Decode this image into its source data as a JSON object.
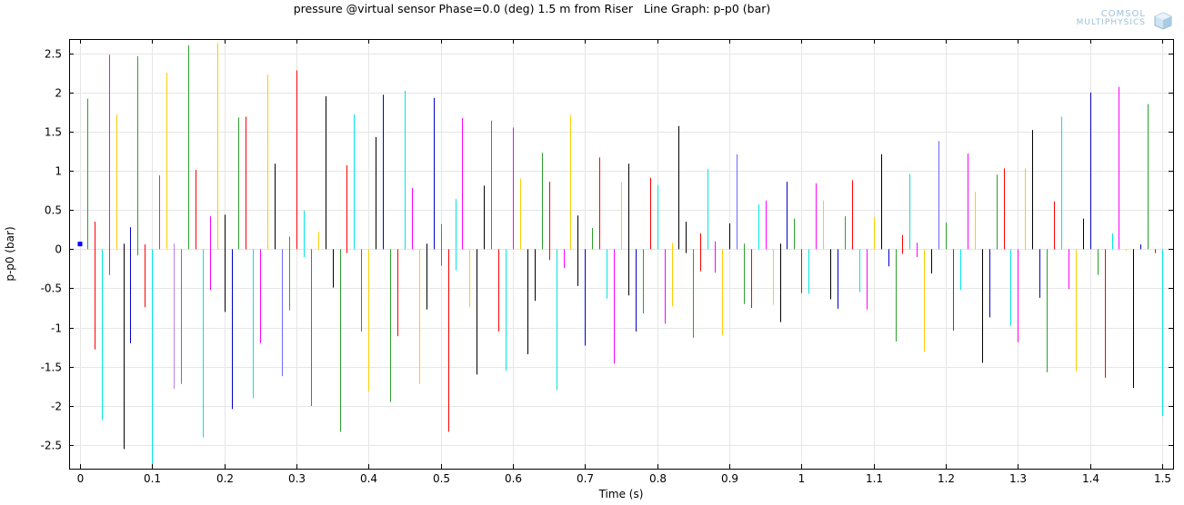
{
  "chart_data": {
    "type": "line",
    "title": "pressure @virtual sensor Phase=0.0 (deg) 1.5 m from Riser   Line Graph: p-p0 (bar)",
    "xlabel": "Time (s)",
    "ylabel": "p-p0 (bar)",
    "xlim": [
      -0.015,
      1.515
    ],
    "ylim": [
      -2.8,
      2.68
    ],
    "xticks": [
      0,
      0.1,
      0.2,
      0.3,
      0.4,
      0.5,
      0.6,
      0.7,
      0.8,
      0.9,
      1,
      1.1,
      1.2,
      1.3,
      1.4,
      1.5
    ],
    "yticks": [
      -2.5,
      -2,
      -1.5,
      -1,
      -0.5,
      0,
      0.5,
      1,
      1.5,
      2,
      2.5
    ],
    "grid": true,
    "legend": "none",
    "segments": [
      {
        "x": 0.0,
        "ylo": 0.06,
        "yhi": 0.06,
        "color": "#0000ff"
      },
      {
        "x": 0.01,
        "ylo": 0.0,
        "yhi": 1.92,
        "color": "#2ca02c"
      },
      {
        "x": 0.02,
        "ylo": -1.28,
        "yhi": 0.35,
        "color": "#ff0000"
      },
      {
        "x": 0.03,
        "ylo": -2.18,
        "yhi": 0.0,
        "color": "#00e5e5"
      },
      {
        "x": 0.04,
        "ylo": -0.33,
        "yhi": 2.48,
        "color": "#ff00ff"
      },
      {
        "x": 0.05,
        "ylo": 0.0,
        "yhi": 1.72,
        "color": "#ffcc00"
      },
      {
        "x": 0.06,
        "ylo": -2.55,
        "yhi": 0.07,
        "color": "#000000"
      },
      {
        "x": 0.07,
        "ylo": -1.2,
        "yhi": 0.28,
        "color": "#0000cc"
      },
      {
        "x": 0.08,
        "ylo": -0.08,
        "yhi": 2.46,
        "color": "#2ca02c"
      },
      {
        "x": 0.09,
        "ylo": -0.74,
        "yhi": 0.06,
        "color": "#ff0000"
      },
      {
        "x": 0.1,
        "ylo": -2.75,
        "yhi": 0.0,
        "color": "#00e5e5"
      },
      {
        "x": 0.11,
        "ylo": 0.0,
        "yhi": 0.94,
        "color": "#ff00ff"
      },
      {
        "x": 0.12,
        "ylo": 0.0,
        "yhi": 2.25,
        "color": "#ffcc00"
      },
      {
        "x": 0.13,
        "ylo": -1.78,
        "yhi": 0.07,
        "color": "#c080e0"
      },
      {
        "x": 0.14,
        "ylo": -1.72,
        "yhi": 0.0,
        "color": "#6a6aff"
      },
      {
        "x": 0.15,
        "ylo": 0.0,
        "yhi": 2.6,
        "color": "#2ca02c"
      },
      {
        "x": 0.16,
        "ylo": 0.0,
        "yhi": 1.01,
        "color": "#ff0000"
      },
      {
        "x": 0.17,
        "ylo": -2.4,
        "yhi": 0.0,
        "color": "#00e5e5"
      },
      {
        "x": 0.18,
        "ylo": -0.52,
        "yhi": 0.42,
        "color": "#ff00ff"
      },
      {
        "x": 0.19,
        "ylo": 0.0,
        "yhi": 2.63,
        "color": "#ffcc00"
      },
      {
        "x": 0.2,
        "ylo": -0.8,
        "yhi": 0.44,
        "color": "#000000"
      },
      {
        "x": 0.21,
        "ylo": -2.04,
        "yhi": 0.0,
        "color": "#0000cc"
      },
      {
        "x": 0.22,
        "ylo": 0.0,
        "yhi": 1.68,
        "color": "#2ca02c"
      },
      {
        "x": 0.23,
        "ylo": 0.0,
        "yhi": 1.69,
        "color": "#ff0000"
      },
      {
        "x": 0.24,
        "ylo": -1.9,
        "yhi": 0.0,
        "color": "#00e5e5"
      },
      {
        "x": 0.25,
        "ylo": -1.2,
        "yhi": 0.0,
        "color": "#ff00ff"
      },
      {
        "x": 0.26,
        "ylo": 0.0,
        "yhi": 2.23,
        "color": "#ffcc00"
      },
      {
        "x": 0.27,
        "ylo": 0.0,
        "yhi": 1.09,
        "color": "#000000"
      },
      {
        "x": 0.28,
        "ylo": -1.62,
        "yhi": 0.0,
        "color": "#6a6aff"
      },
      {
        "x": 0.29,
        "ylo": -0.78,
        "yhi": 0.16,
        "color": "#2ca02c"
      },
      {
        "x": 0.3,
        "ylo": 0.0,
        "yhi": 2.28,
        "color": "#ff0000"
      },
      {
        "x": 0.31,
        "ylo": -0.1,
        "yhi": 0.49,
        "color": "#00e5e5"
      },
      {
        "x": 0.32,
        "ylo": -2.0,
        "yhi": 0.0,
        "color": "#ff00ff"
      },
      {
        "x": 0.33,
        "ylo": 0.0,
        "yhi": 0.22,
        "color": "#ffcc00"
      },
      {
        "x": 0.34,
        "ylo": 0.0,
        "yhi": 1.95,
        "color": "#000000"
      },
      {
        "x": 0.35,
        "ylo": -0.49,
        "yhi": 0.0,
        "color": "#000000"
      },
      {
        "x": 0.36,
        "ylo": -2.33,
        "yhi": 0.0,
        "color": "#2ca02c"
      },
      {
        "x": 0.37,
        "ylo": -0.05,
        "yhi": 1.07,
        "color": "#ff0000"
      },
      {
        "x": 0.38,
        "ylo": 0.0,
        "yhi": 1.72,
        "color": "#00e5e5"
      },
      {
        "x": 0.39,
        "ylo": -1.05,
        "yhi": 0.0,
        "color": "#ff00ff"
      },
      {
        "x": 0.4,
        "ylo": -1.82,
        "yhi": 0.0,
        "color": "#ffcc00"
      },
      {
        "x": 0.41,
        "ylo": 0.0,
        "yhi": 1.43,
        "color": "#000000"
      },
      {
        "x": 0.42,
        "ylo": 0.0,
        "yhi": 1.97,
        "color": "#0000cc"
      },
      {
        "x": 0.43,
        "ylo": -1.95,
        "yhi": 0.0,
        "color": "#2ca02c"
      },
      {
        "x": 0.44,
        "ylo": -1.11,
        "yhi": 0.0,
        "color": "#ff0000"
      },
      {
        "x": 0.45,
        "ylo": 0.0,
        "yhi": 2.02,
        "color": "#00e5e5"
      },
      {
        "x": 0.46,
        "ylo": 0.0,
        "yhi": 0.78,
        "color": "#ff00ff"
      },
      {
        "x": 0.47,
        "ylo": -1.72,
        "yhi": 0.0,
        "color": "#ffcc00"
      },
      {
        "x": 0.48,
        "ylo": -0.77,
        "yhi": 0.07,
        "color": "#000000"
      },
      {
        "x": 0.49,
        "ylo": 0.0,
        "yhi": 1.93,
        "color": "#0000cc"
      },
      {
        "x": 0.5,
        "ylo": -0.21,
        "yhi": 0.32,
        "color": "#2ca02c"
      },
      {
        "x": 0.51,
        "ylo": -2.33,
        "yhi": 0.0,
        "color": "#ff0000"
      },
      {
        "x": 0.52,
        "ylo": -0.27,
        "yhi": 0.64,
        "color": "#00e5e5"
      },
      {
        "x": 0.53,
        "ylo": 0.0,
        "yhi": 1.67,
        "color": "#ff00ff"
      },
      {
        "x": 0.54,
        "ylo": -0.74,
        "yhi": 0.0,
        "color": "#ffcc00"
      },
      {
        "x": 0.55,
        "ylo": -1.6,
        "yhi": 0.0,
        "color": "#000000"
      },
      {
        "x": 0.56,
        "ylo": 0.0,
        "yhi": 0.81,
        "color": "#000000"
      },
      {
        "x": 0.57,
        "ylo": 0.0,
        "yhi": 1.64,
        "color": "#2ca02c"
      },
      {
        "x": 0.58,
        "ylo": -1.05,
        "yhi": 0.0,
        "color": "#ff0000"
      },
      {
        "x": 0.59,
        "ylo": -1.55,
        "yhi": 0.0,
        "color": "#00e5e5"
      },
      {
        "x": 0.6,
        "ylo": 0.0,
        "yhi": 1.55,
        "color": "#ff00ff"
      },
      {
        "x": 0.61,
        "ylo": 0.0,
        "yhi": 0.9,
        "color": "#ffcc00"
      },
      {
        "x": 0.62,
        "ylo": -1.34,
        "yhi": 0.0,
        "color": "#000000"
      },
      {
        "x": 0.63,
        "ylo": -0.66,
        "yhi": 0.0,
        "color": "#000000"
      },
      {
        "x": 0.64,
        "ylo": 0.0,
        "yhi": 1.23,
        "color": "#2ca02c"
      },
      {
        "x": 0.65,
        "ylo": -0.14,
        "yhi": 0.86,
        "color": "#ff0000"
      },
      {
        "x": 0.66,
        "ylo": -1.8,
        "yhi": 0.0,
        "color": "#00e5e5"
      },
      {
        "x": 0.67,
        "ylo": -0.24,
        "yhi": 0.0,
        "color": "#ff00ff"
      },
      {
        "x": 0.68,
        "ylo": 0.0,
        "yhi": 1.71,
        "color": "#ffcc00"
      },
      {
        "x": 0.69,
        "ylo": -0.47,
        "yhi": 0.43,
        "color": "#000000"
      },
      {
        "x": 0.7,
        "ylo": -1.23,
        "yhi": 0.0,
        "color": "#0000cc"
      },
      {
        "x": 0.71,
        "ylo": 0.0,
        "yhi": 0.27,
        "color": "#2ca02c"
      },
      {
        "x": 0.72,
        "ylo": 0.0,
        "yhi": 1.17,
        "color": "#ff0000"
      },
      {
        "x": 0.73,
        "ylo": -0.63,
        "yhi": 0.0,
        "color": "#00e5e5"
      },
      {
        "x": 0.74,
        "ylo": -1.46,
        "yhi": 0.0,
        "color": "#ff00ff"
      },
      {
        "x": 0.75,
        "ylo": 0.0,
        "yhi": 0.86,
        "color": "#ffcc00"
      },
      {
        "x": 0.76,
        "ylo": -0.59,
        "yhi": 1.09,
        "color": "#000000"
      },
      {
        "x": 0.77,
        "ylo": -1.05,
        "yhi": 0.0,
        "color": "#0000cc"
      },
      {
        "x": 0.78,
        "ylo": -0.82,
        "yhi": 0.0,
        "color": "#2ca02c"
      },
      {
        "x": 0.79,
        "ylo": 0.0,
        "yhi": 0.91,
        "color": "#ff0000"
      },
      {
        "x": 0.8,
        "ylo": 0.0,
        "yhi": 0.82,
        "color": "#00e5e5"
      },
      {
        "x": 0.81,
        "ylo": -0.95,
        "yhi": 0.0,
        "color": "#ff00ff"
      },
      {
        "x": 0.82,
        "ylo": -0.73,
        "yhi": 0.08,
        "color": "#ffcc00"
      },
      {
        "x": 0.83,
        "ylo": 0.0,
        "yhi": 1.57,
        "color": "#000000"
      },
      {
        "x": 0.84,
        "ylo": -0.05,
        "yhi": 0.35,
        "color": "#000000"
      },
      {
        "x": 0.85,
        "ylo": -1.13,
        "yhi": 0.0,
        "color": "#2ca02c"
      },
      {
        "x": 0.86,
        "ylo": -0.28,
        "yhi": 0.2,
        "color": "#ff0000"
      },
      {
        "x": 0.87,
        "ylo": 0.0,
        "yhi": 1.02,
        "color": "#00e5e5"
      },
      {
        "x": 0.88,
        "ylo": -0.3,
        "yhi": 0.1,
        "color": "#ff00ff"
      },
      {
        "x": 0.89,
        "ylo": -1.1,
        "yhi": 0.0,
        "color": "#ffcc00"
      },
      {
        "x": 0.9,
        "ylo": 0.0,
        "yhi": 0.33,
        "color": "#000000"
      },
      {
        "x": 0.91,
        "ylo": 0.0,
        "yhi": 1.21,
        "color": "#6a6aff"
      },
      {
        "x": 0.92,
        "ylo": -0.7,
        "yhi": 0.07,
        "color": "#2ca02c"
      },
      {
        "x": 0.93,
        "ylo": -0.75,
        "yhi": 0.0,
        "color": "#ff0000"
      },
      {
        "x": 0.94,
        "ylo": 0.0,
        "yhi": 0.57,
        "color": "#00e5e5"
      },
      {
        "x": 0.95,
        "ylo": 0.0,
        "yhi": 0.62,
        "color": "#ff00ff"
      },
      {
        "x": 0.96,
        "ylo": -0.71,
        "yhi": 0.0,
        "color": "#ffcc00"
      },
      {
        "x": 0.97,
        "ylo": -0.93,
        "yhi": 0.07,
        "color": "#000000"
      },
      {
        "x": 0.98,
        "ylo": 0.0,
        "yhi": 0.86,
        "color": "#0000cc"
      },
      {
        "x": 0.99,
        "ylo": 0.0,
        "yhi": 0.39,
        "color": "#2ca02c"
      },
      {
        "x": 1.0,
        "ylo": -0.56,
        "yhi": 0.0,
        "color": "#ff0000"
      },
      {
        "x": 1.01,
        "ylo": -0.57,
        "yhi": 0.0,
        "color": "#00e5e5"
      },
      {
        "x": 1.02,
        "ylo": 0.0,
        "yhi": 0.84,
        "color": "#ff00ff"
      },
      {
        "x": 1.03,
        "ylo": 0.0,
        "yhi": 0.62,
        "color": "#ffcc00"
      },
      {
        "x": 1.04,
        "ylo": -0.64,
        "yhi": 0.0,
        "color": "#000000"
      },
      {
        "x": 1.05,
        "ylo": -0.76,
        "yhi": 0.0,
        "color": "#0000cc"
      },
      {
        "x": 1.06,
        "ylo": 0.0,
        "yhi": 0.42,
        "color": "#2ca02c"
      },
      {
        "x": 1.07,
        "ylo": 0.0,
        "yhi": 0.88,
        "color": "#ff0000"
      },
      {
        "x": 1.08,
        "ylo": -0.55,
        "yhi": 0.0,
        "color": "#00e5e5"
      },
      {
        "x": 1.09,
        "ylo": -0.77,
        "yhi": 0.0,
        "color": "#ff00ff"
      },
      {
        "x": 1.1,
        "ylo": 0.0,
        "yhi": 0.41,
        "color": "#ffcc00"
      },
      {
        "x": 1.11,
        "ylo": 0.0,
        "yhi": 1.21,
        "color": "#000000"
      },
      {
        "x": 1.12,
        "ylo": -0.22,
        "yhi": 0.0,
        "color": "#0000cc"
      },
      {
        "x": 1.13,
        "ylo": -1.18,
        "yhi": 0.0,
        "color": "#2ca02c"
      },
      {
        "x": 1.14,
        "ylo": -0.06,
        "yhi": 0.18,
        "color": "#ff0000"
      },
      {
        "x": 1.15,
        "ylo": 0.0,
        "yhi": 0.96,
        "color": "#00e5e5"
      },
      {
        "x": 1.16,
        "ylo": -0.1,
        "yhi": 0.08,
        "color": "#ff00ff"
      },
      {
        "x": 1.17,
        "ylo": -1.31,
        "yhi": 0.0,
        "color": "#ffcc00"
      },
      {
        "x": 1.18,
        "ylo": -0.31,
        "yhi": 0.0,
        "color": "#000000"
      },
      {
        "x": 1.19,
        "ylo": 0.0,
        "yhi": 1.38,
        "color": "#6a6aff"
      },
      {
        "x": 1.2,
        "ylo": 0.0,
        "yhi": 0.34,
        "color": "#2ca02c"
      },
      {
        "x": 1.21,
        "ylo": -1.04,
        "yhi": 0.0,
        "color": "#ff0000"
      },
      {
        "x": 1.22,
        "ylo": -0.52,
        "yhi": 0.0,
        "color": "#00e5e5"
      },
      {
        "x": 1.23,
        "ylo": 0.0,
        "yhi": 1.22,
        "color": "#ff00ff"
      },
      {
        "x": 1.24,
        "ylo": 0.0,
        "yhi": 0.73,
        "color": "#ffcc00"
      },
      {
        "x": 1.25,
        "ylo": -1.45,
        "yhi": 0.0,
        "color": "#000000"
      },
      {
        "x": 1.26,
        "ylo": -0.87,
        "yhi": 0.0,
        "color": "#0000cc"
      },
      {
        "x": 1.27,
        "ylo": 0.0,
        "yhi": 0.95,
        "color": "#2ca02c"
      },
      {
        "x": 1.28,
        "ylo": 0.0,
        "yhi": 1.03,
        "color": "#ff0000"
      },
      {
        "x": 1.29,
        "ylo": -0.98,
        "yhi": 0.0,
        "color": "#00e5e5"
      },
      {
        "x": 1.3,
        "ylo": -1.19,
        "yhi": 0.0,
        "color": "#ff00ff"
      },
      {
        "x": 1.31,
        "ylo": 0.0,
        "yhi": 1.03,
        "color": "#ffcc00"
      },
      {
        "x": 1.32,
        "ylo": 0.0,
        "yhi": 1.52,
        "color": "#000000"
      },
      {
        "x": 1.33,
        "ylo": -0.62,
        "yhi": 0.0,
        "color": "#0000cc"
      },
      {
        "x": 1.34,
        "ylo": -1.57,
        "yhi": 0.0,
        "color": "#2ca02c"
      },
      {
        "x": 1.35,
        "ylo": 0.0,
        "yhi": 0.61,
        "color": "#ff0000"
      },
      {
        "x": 1.36,
        "ylo": 0.0,
        "yhi": 1.69,
        "color": "#00e5e5"
      },
      {
        "x": 1.37,
        "ylo": -0.51,
        "yhi": 0.0,
        "color": "#ff00ff"
      },
      {
        "x": 1.38,
        "ylo": -1.56,
        "yhi": 0.0,
        "color": "#ffcc00"
      },
      {
        "x": 1.39,
        "ylo": 0.0,
        "yhi": 0.39,
        "color": "#000000"
      },
      {
        "x": 1.4,
        "ylo": 0.0,
        "yhi": 2.0,
        "color": "#0000cc"
      },
      {
        "x": 1.41,
        "ylo": -0.33,
        "yhi": 0.0,
        "color": "#2ca02c"
      },
      {
        "x": 1.42,
        "ylo": -1.64,
        "yhi": 0.0,
        "color": "#ff0000"
      },
      {
        "x": 1.43,
        "ylo": 0.0,
        "yhi": 0.2,
        "color": "#00e5e5"
      },
      {
        "x": 1.44,
        "ylo": 0.0,
        "yhi": 2.07,
        "color": "#ff00ff"
      },
      {
        "x": 1.45,
        "ylo": -0.02,
        "yhi": 0.0,
        "color": "#ffcc00"
      },
      {
        "x": 1.46,
        "ylo": -1.77,
        "yhi": 0.0,
        "color": "#000000"
      },
      {
        "x": 1.47,
        "ylo": 0.0,
        "yhi": 0.06,
        "color": "#0000cc"
      },
      {
        "x": 1.48,
        "ylo": 0.0,
        "yhi": 1.85,
        "color": "#2ca02c"
      },
      {
        "x": 1.49,
        "ylo": -0.05,
        "yhi": 0.0,
        "color": "#ff0000"
      },
      {
        "x": 1.5,
        "ylo": -2.13,
        "yhi": 0.0,
        "color": "#00e5e5"
      }
    ]
  },
  "logo": {
    "line1": "COMSOL",
    "line2": "MULTIPHYSICS"
  },
  "colors": {
    "grid": "#e6e6e6",
    "frame": "#000000",
    "background": "#ffffff"
  }
}
